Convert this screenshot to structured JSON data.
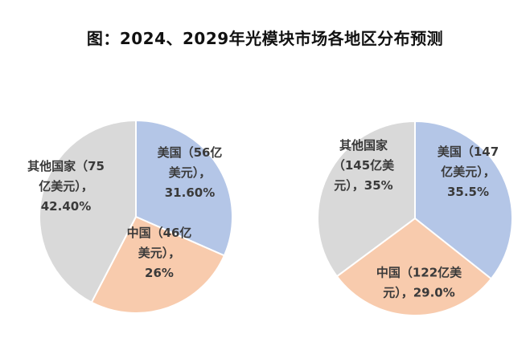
{
  "title": "图：2024、2029年光模块市场各地区分布预测",
  "colors": {
    "us": "#b4c6e7",
    "china": "#f8cbad",
    "other": "#d9d9d9",
    "stroke": "#ffffff"
  },
  "chart_data": [
    {
      "type": "pie",
      "slices": [
        {
          "name": "美国",
          "value": 31.6,
          "color": "#b4c6e7",
          "label_lines": [
            "美国（56亿",
            "美元），",
            "31.60%"
          ]
        },
        {
          "name": "中国",
          "value": 26.0,
          "color": "#f8cbad",
          "label_lines": [
            "中国（46亿",
            "美元），",
            "26%"
          ]
        },
        {
          "name": "其他国家",
          "value": 42.4,
          "color": "#d9d9d9",
          "label_lines": [
            "其他国家（75",
            "亿美元），",
            "42.40%"
          ]
        }
      ]
    },
    {
      "type": "pie",
      "slices": [
        {
          "name": "美国",
          "value": 35.5,
          "color": "#b4c6e7",
          "label_lines": [
            "美国（147",
            "亿美元），",
            "35.5%"
          ]
        },
        {
          "name": "中国",
          "value": 29.0,
          "color": "#f8cbad",
          "label_lines": [
            "中国（122亿美",
            "元），29.0%"
          ]
        },
        {
          "name": "其他国家",
          "value": 35.0,
          "color": "#d9d9d9",
          "label_lines": [
            "其他国家",
            "（145亿美",
            "元），35%"
          ]
        }
      ]
    }
  ]
}
